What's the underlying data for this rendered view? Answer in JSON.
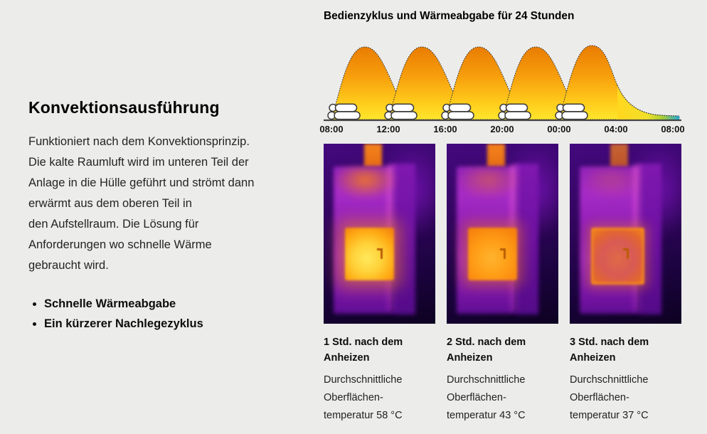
{
  "palette": {
    "page_bg": "#ececeb",
    "text": "#1a1a1a",
    "thermal_purple": "#8d1db4",
    "thermal_hot_orange": "#f07d12",
    "thermal_hot_yellow": "#ffd23a"
  },
  "left": {
    "heading": "Konvektionsausführung",
    "paragraph_lines": [
      "Funktioniert nach dem Konvektionsprinzip.",
      "Die kalte Raumluft wird im unteren Teil der",
      "Anlage in die Hülle geführt und strömt dann",
      "erwärmt aus dem oberen Teil in",
      "den Aufstellraum. Die Lösung für",
      "Anforderungen wo schnelle Wärme",
      "gebraucht wird."
    ],
    "bullets": [
      "Schnelle Wärmeabgabe",
      "Ein kürzerer Nachlegezyklus"
    ]
  },
  "chart_data": {
    "type": "area",
    "title": "Bedienzyklus und Wärmeabgabe für 24 Stunden",
    "x_ticks": [
      "08:00",
      "12:00",
      "16:00",
      "20:00",
      "00:00",
      "04:00",
      "08:00"
    ],
    "x_axis_span_hours": 24,
    "refuel_times": [
      "08:00",
      "12:00",
      "16:00",
      "20:00",
      "00:00"
    ],
    "refuel_tick_indices": [
      0,
      1,
      2,
      3,
      4
    ],
    "series": [
      {
        "name": "Wärmeabgabe",
        "description": "Fünf Heizimpulse gleicher Höhe nach jedem Nachlegen; nach dem letzten Impuls um 00:00 langsames Abklingen bis 08:00"
      }
    ],
    "marker_icon": "firewood-logs",
    "grid": false,
    "legend_position": "none",
    "colors": {
      "heat_top": "#e97c02",
      "heat_mid": "#f79e0c",
      "heat_bottom": "#ffe62c",
      "cooldown_green": "#a6ce39",
      "cooldown_blue": "#25a8d8"
    }
  },
  "figures": [
    {
      "title": "1 Std. nach dem\nAnheizen",
      "body": "Durchschnittliche\nOberflächen-\ntemperatur 58 °C",
      "avg_surface_temp_c": 58
    },
    {
      "title": "2 Std. nach dem\nAnheizen",
      "body": "Durchschnittliche\nOberflächen-\ntemperatur 43 °C",
      "avg_surface_temp_c": 43
    },
    {
      "title": "3 Std. nach dem\nAnheizen",
      "body": "Durchschnittliche\nOberflächen-\ntemperatur 37 °C",
      "avg_surface_temp_c": 37
    }
  ]
}
